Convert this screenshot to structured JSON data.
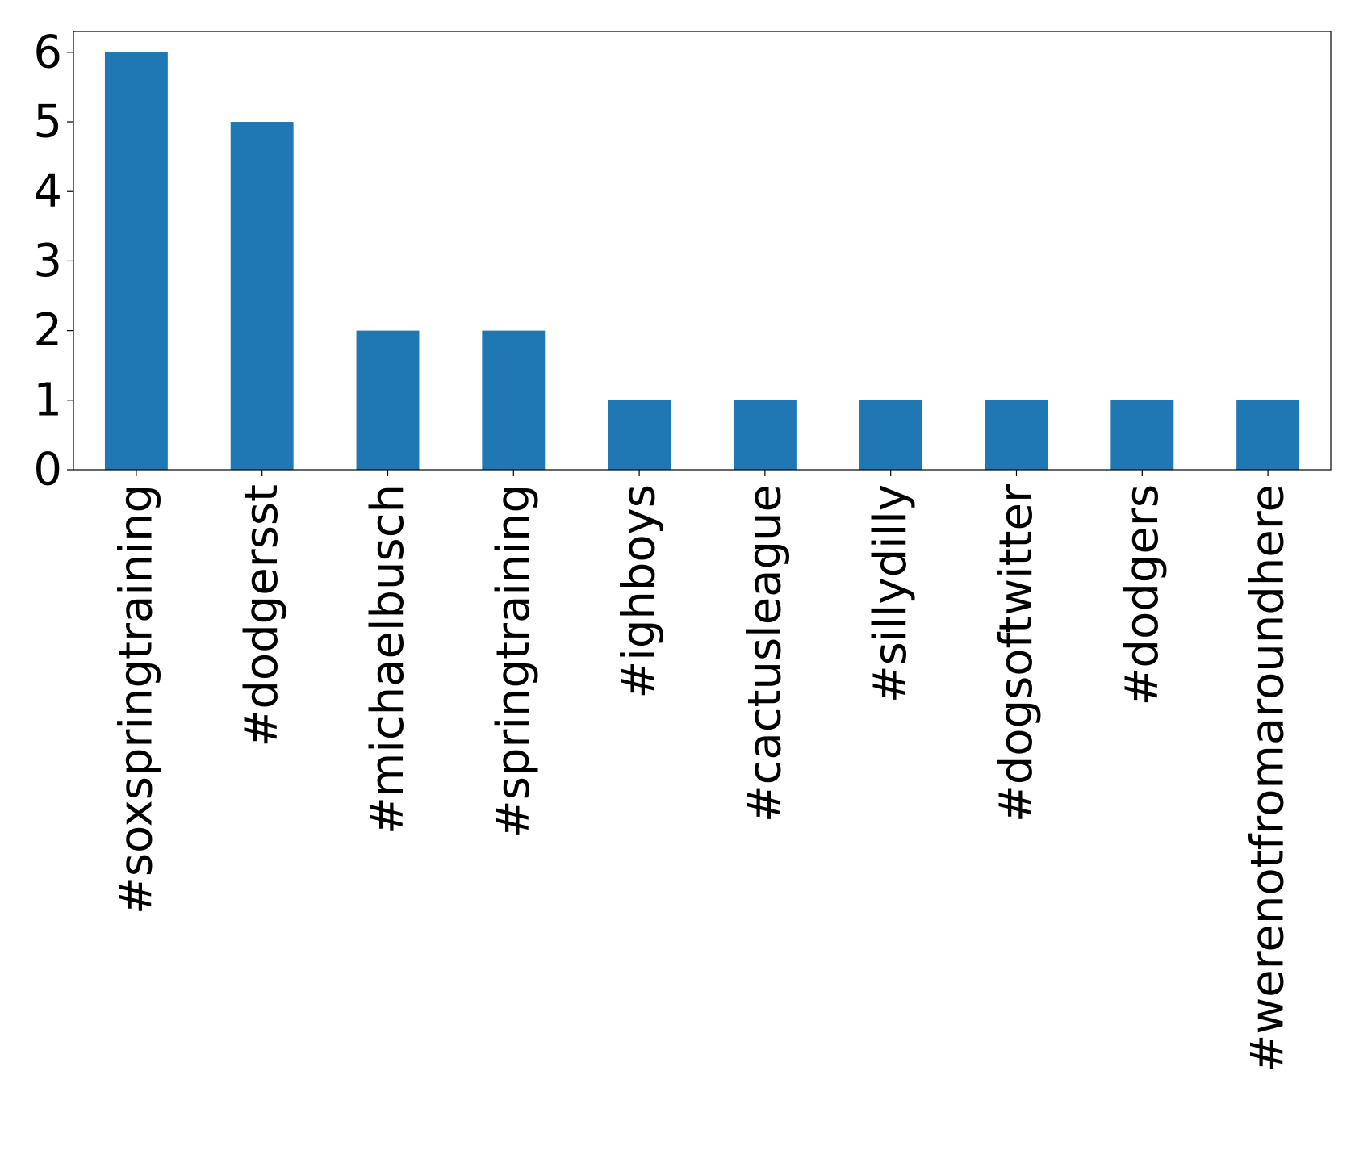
{
  "chart_data": {
    "type": "bar",
    "title": "",
    "xlabel": "",
    "ylabel": "",
    "categories": [
      "#soxspringtraining",
      "#dodgersst",
      "#michaelbusch",
      "#springtraining",
      "#ighboys",
      "#cactusleague",
      "#sillydilly",
      "#dogsoftwitter",
      "#dodgers",
      "#werenotfromaroundhere"
    ],
    "values": [
      6,
      5,
      2,
      2,
      1,
      1,
      1,
      1,
      1,
      1
    ],
    "ylim": [
      0,
      6.3
    ],
    "yticks": [
      0,
      1,
      2,
      3,
      4,
      5,
      6
    ],
    "grid": false,
    "legend": "none",
    "colors": {
      "bar": "#1f77b4",
      "axis": "#000000",
      "text": "#000000",
      "background": "#ffffff"
    }
  }
}
